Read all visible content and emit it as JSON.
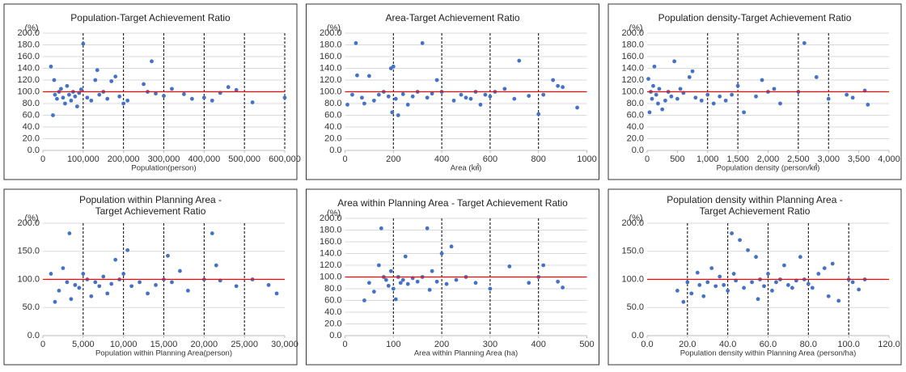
{
  "chart_data": [
    {
      "type": "scatter",
      "title": "Population-Target Achievement Ratio",
      "y_unit": "(%)",
      "x_label": "Population(person)",
      "xlim": [
        0,
        600000
      ],
      "xticks": [
        0,
        {
          "value": 100000,
          "label": "100,000"
        },
        {
          "value": 200000,
          "label": "200,000"
        },
        {
          "value": 300000,
          "label": "300,000"
        },
        {
          "value": 400000,
          "label": "400,000"
        },
        {
          "value": 500000,
          "label": "500,000"
        },
        {
          "value": 600000,
          "label": "600,000"
        }
      ],
      "ylim": [
        0,
        200
      ],
      "yticks": [
        {
          "value": 0,
          "label": "0.0"
        },
        {
          "value": 20,
          "label": "20.0"
        },
        {
          "value": 40,
          "label": "40.0"
        },
        {
          "value": 60,
          "label": "60.0"
        },
        {
          "value": 80,
          "label": "80.0"
        },
        {
          "value": 100,
          "label": "100.0"
        },
        {
          "value": 120,
          "label": "120.0"
        },
        {
          "value": 140,
          "label": "140.0"
        },
        {
          "value": 160,
          "label": "160.0"
        },
        {
          "value": 180,
          "label": "180.0"
        },
        {
          "value": 200,
          "label": "200.0"
        }
      ],
      "grid": true,
      "reference_line": 100,
      "reference_color": "#ff0000",
      "dashed_x": [
        100000,
        200000,
        300000,
        400000,
        500000,
        600000
      ],
      "series": [
        {
          "color": "#4472c4",
          "x": [
            20000,
            25000,
            28000,
            30000,
            35000,
            40000,
            45000,
            50000,
            55000,
            60000,
            65000,
            70000,
            75000,
            80000,
            85000,
            90000,
            95000,
            100000,
            110000,
            120000,
            130000,
            135000,
            140000,
            150000,
            160000,
            170000,
            180000,
            190000,
            200000,
            210000,
            250000,
            260000,
            270000,
            280000,
            300000,
            320000,
            350000,
            370000,
            400000,
            420000,
            440000,
            460000,
            480000,
            520000,
            600000
          ],
          "values": [
            143,
            60,
            120,
            95,
            88,
            100,
            105,
            90,
            80,
            110,
            95,
            85,
            100,
            92,
            75,
            98,
            104,
            182,
            90,
            85,
            120,
            137,
            95,
            100,
            88,
            118,
            126,
            92,
            80,
            85,
            113,
            100,
            152,
            97,
            93,
            105,
            96,
            88,
            90,
            85,
            98,
            108,
            103,
            82,
            90
          ]
        }
      ]
    },
    {
      "type": "scatter",
      "title": "Area-Target Achievement Ratio",
      "y_unit": "(%)",
      "x_label": "Area (㎢)",
      "xlim": [
        0,
        1000
      ],
      "xticks": [
        0,
        200,
        400,
        600,
        800,
        1000
      ],
      "ylim": [
        0,
        200
      ],
      "yticks": [
        {
          "value": 0,
          "label": "0.0"
        },
        {
          "value": 20,
          "label": "20.0"
        },
        {
          "value": 40,
          "label": "40.0"
        },
        {
          "value": 60,
          "label": "60.0"
        },
        {
          "value": 80,
          "label": "80.0"
        },
        {
          "value": 100,
          "label": "100.0"
        },
        {
          "value": 120,
          "label": "120.0"
        },
        {
          "value": 140,
          "label": "140.0"
        },
        {
          "value": 160,
          "label": "160.0"
        },
        {
          "value": 180,
          "label": "180.0"
        },
        {
          "value": 200,
          "label": "200.0"
        }
      ],
      "grid": true,
      "reference_line": 100,
      "reference_color": "#ff0000",
      "dashed_x": [
        200,
        400,
        600,
        800
      ],
      "series": [
        {
          "color": "#4472c4",
          "x": [
            10,
            30,
            45,
            50,
            70,
            80,
            100,
            120,
            140,
            160,
            180,
            190,
            195,
            200,
            210,
            220,
            240,
            260,
            280,
            300,
            320,
            340,
            360,
            380,
            400,
            450,
            480,
            500,
            520,
            540,
            560,
            580,
            600,
            620,
            660,
            700,
            720,
            760,
            800,
            820,
            860,
            880,
            900,
            960
          ],
          "values": [
            78,
            95,
            183,
            128,
            90,
            80,
            127,
            85,
            95,
            100,
            92,
            140,
            65,
            143,
            88,
            60,
            96,
            78,
            92,
            100,
            183,
            90,
            97,
            120,
            100,
            85,
            95,
            90,
            88,
            100,
            78,
            95,
            92,
            100,
            105,
            88,
            153,
            93,
            62,
            95,
            120,
            110,
            108,
            73
          ]
        }
      ]
    },
    {
      "type": "scatter",
      "title": "Population density-Target Achievement Ratio",
      "y_unit": "(%)",
      "x_label": "Population density (person/㎢)",
      "xlim": [
        0,
        4000
      ],
      "xticks": [
        0,
        500,
        {
          "value": 1000,
          "label": "1,000"
        },
        {
          "value": 1500,
          "label": "1,500"
        },
        {
          "value": 2000,
          "label": "2,000"
        },
        {
          "value": 2500,
          "label": "2,500"
        },
        {
          "value": 3000,
          "label": "3,000"
        },
        {
          "value": 3500,
          "label": "3,500"
        },
        {
          "value": 4000,
          "label": "4,000"
        }
      ],
      "ylim": [
        0,
        200
      ],
      "yticks": [
        {
          "value": 0,
          "label": "0.0"
        },
        {
          "value": 20,
          "label": "20.0"
        },
        {
          "value": 40,
          "label": "40.0"
        },
        {
          "value": 60,
          "label": "60.0"
        },
        {
          "value": 80,
          "label": "80.0"
        },
        {
          "value": 100,
          "label": "100.0"
        },
        {
          "value": 120,
          "label": "120.0"
        },
        {
          "value": 140,
          "label": "140.0"
        },
        {
          "value": 160,
          "label": "160.0"
        },
        {
          "value": 180,
          "label": "180.0"
        },
        {
          "value": 200,
          "label": "200.0"
        }
      ],
      "grid": true,
      "reference_line": 100,
      "reference_color": "#ff0000",
      "dashed_x": [
        1000,
        1500,
        2500,
        3000
      ],
      "series": [
        {
          "color": "#4472c4",
          "x": [
            20,
            40,
            60,
            80,
            100,
            120,
            150,
            180,
            200,
            250,
            300,
            350,
            400,
            450,
            500,
            550,
            600,
            700,
            750,
            800,
            900,
            1000,
            1100,
            1200,
            1300,
            1400,
            1500,
            1600,
            1800,
            1900,
            2000,
            2100,
            2200,
            2500,
            2600,
            2800,
            3000,
            3300,
            3400,
            3600,
            3650
          ],
          "values": [
            122,
            65,
            100,
            88,
            110,
            143,
            95,
            80,
            105,
            70,
            85,
            100,
            92,
            152,
            88,
            105,
            98,
            125,
            135,
            90,
            85,
            95,
            80,
            92,
            85,
            95,
            110,
            65,
            92,
            120,
            100,
            105,
            80,
            100,
            183,
            125,
            88,
            95,
            90,
            102,
            78
          ]
        }
      ]
    },
    {
      "type": "scatter",
      "title": [
        "Population within Planning Area -",
        "Target Achievement Ratio"
      ],
      "y_unit": "(%)",
      "x_label": "Population within Planning Area(person)",
      "xlim": [
        0,
        30000
      ],
      "xticks": [
        0,
        {
          "value": 5000,
          "label": "5,000"
        },
        {
          "value": 10000,
          "label": "10,000"
        },
        {
          "value": 15000,
          "label": "15,000"
        },
        {
          "value": 20000,
          "label": "20,000"
        },
        {
          "value": 25000,
          "label": "25,000"
        },
        {
          "value": 30000,
          "label": "30,000"
        }
      ],
      "ylim": [
        0,
        200
      ],
      "yticks": [
        {
          "value": 0,
          "label": "0.0"
        },
        {
          "value": 50,
          "label": "50.0"
        },
        {
          "value": 100,
          "label": "100.0"
        },
        {
          "value": 150,
          "label": "150.0"
        },
        {
          "value": 200,
          "label": "200.0"
        }
      ],
      "grid": true,
      "reference_line": 100,
      "reference_color": "#ff0000",
      "dashed_x": [
        5000,
        10000,
        15000,
        20000,
        25000
      ],
      "series": [
        {
          "color": "#4472c4",
          "x": [
            1000,
            1500,
            2000,
            2500,
            3000,
            3300,
            3500,
            4000,
            4500,
            5000,
            5500,
            6000,
            6500,
            7000,
            7500,
            8000,
            8500,
            9000,
            9500,
            10000,
            10500,
            11000,
            12000,
            13000,
            14000,
            15000,
            15500,
            16000,
            17000,
            18000,
            20000,
            21000,
            21500,
            22000,
            24000,
            26000,
            28000,
            29000
          ],
          "values": [
            110,
            60,
            80,
            120,
            95,
            182,
            65,
            90,
            85,
            110,
            100,
            70,
            95,
            88,
            105,
            75,
            92,
            135,
            100,
            110,
            152,
            88,
            95,
            75,
            90,
            100,
            142,
            95,
            115,
            80,
            100,
            182,
            125,
            98,
            88,
            100,
            90,
            75
          ]
        }
      ]
    },
    {
      "type": "scatter",
      "title": "Area within Planning Area - Target Achievement Ratio",
      "y_unit": "(%)",
      "x_label": "Area within Planning Area (ha)",
      "xlim": [
        0,
        500
      ],
      "xticks": [
        0,
        100,
        200,
        300,
        400,
        500
      ],
      "ylim": [
        0,
        200
      ],
      "yticks": [
        {
          "value": 0,
          "label": "0.0"
        },
        {
          "value": 20,
          "label": "20.0"
        },
        {
          "value": 40,
          "label": "40.0"
        },
        {
          "value": 60,
          "label": "60.0"
        },
        {
          "value": 80,
          "label": "80.0"
        },
        {
          "value": 100,
          "label": "100.0"
        },
        {
          "value": 120,
          "label": "120.0"
        },
        {
          "value": 140,
          "label": "140.0"
        },
        {
          "value": 160,
          "label": "160.0"
        },
        {
          "value": 180,
          "label": "180.0"
        },
        {
          "value": 200,
          "label": "200.0"
        }
      ],
      "grid": true,
      "reference_line": 100,
      "reference_color": "#ff0000",
      "dashed_x": [
        100,
        200,
        300,
        400
      ],
      "series": [
        {
          "color": "#4472c4",
          "x": [
            40,
            50,
            60,
            70,
            75,
            80,
            85,
            90,
            95,
            100,
            105,
            110,
            115,
            120,
            125,
            130,
            140,
            150,
            160,
            170,
            175,
            180,
            190,
            200,
            210,
            220,
            230,
            250,
            270,
            300,
            340,
            380,
            400,
            410,
            440,
            450
          ],
          "values": [
            60,
            90,
            75,
            120,
            183,
            100,
            95,
            85,
            110,
            80,
            62,
            100,
            90,
            95,
            135,
            88,
            98,
            92,
            100,
            183,
            78,
            110,
            92,
            140,
            88,
            152,
            95,
            100,
            90,
            80,
            118,
            90,
            100,
            120,
            92,
            82
          ]
        }
      ]
    },
    {
      "type": "scatter",
      "title": [
        "Population density within Planning Area -",
        "Target Achievement Ratio"
      ],
      "y_unit": "(%)",
      "x_label": "Population density within Planning Area (person/ha)",
      "xlim": [
        0,
        120
      ],
      "xticks": [
        {
          "value": 0,
          "label": "0.0"
        },
        {
          "value": 20,
          "label": "20.0"
        },
        {
          "value": 40,
          "label": "40.0"
        },
        {
          "value": 60,
          "label": "60.0"
        },
        {
          "value": 80,
          "label": "80.0"
        },
        {
          "value": 100,
          "label": "100.0"
        },
        {
          "value": 120,
          "label": "120.0"
        }
      ],
      "ylim": [
        0,
        200
      ],
      "yticks": [
        {
          "value": 0,
          "label": "0.0"
        },
        {
          "value": 50,
          "label": "50.0"
        },
        {
          "value": 100,
          "label": "100.0"
        },
        {
          "value": 150,
          "label": "150.0"
        },
        {
          "value": 200,
          "label": "200.0"
        }
      ],
      "grid": true,
      "reference_line": 100,
      "reference_color": "#ff0000",
      "dashed_x": [
        20,
        40,
        60,
        80,
        100
      ],
      "series": [
        {
          "color": "#4472c4",
          "x": [
            15,
            18,
            20,
            22,
            25,
            26,
            28,
            30,
            32,
            34,
            36,
            38,
            40,
            42,
            43,
            44,
            46,
            48,
            50,
            52,
            54,
            55,
            56,
            58,
            60,
            62,
            64,
            66,
            68,
            70,
            72,
            74,
            76,
            78,
            80,
            82,
            85,
            88,
            90,
            92,
            95,
            100,
            102,
            105,
            108
          ],
          "values": [
            80,
            60,
            95,
            75,
            112,
            90,
            70,
            95,
            120,
            88,
            105,
            90,
            80,
            182,
            110,
            98,
            170,
            85,
            152,
            95,
            140,
            65,
            100,
            88,
            110,
            80,
            95,
            100,
            125,
            90,
            85,
            98,
            140,
            100,
            92,
            85,
            110,
            120,
            70,
            128,
            62,
            100,
            95,
            82,
            100
          ]
        }
      ]
    }
  ]
}
